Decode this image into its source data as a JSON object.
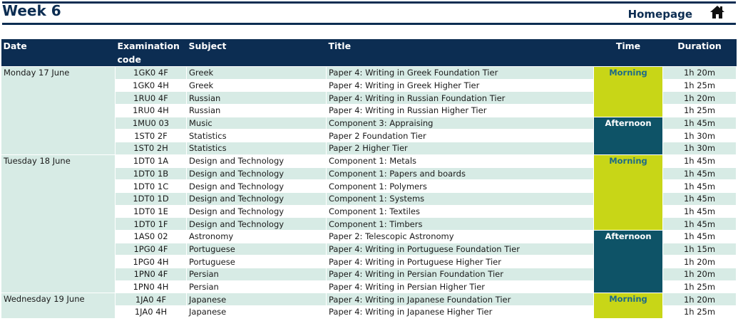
{
  "header": {
    "title": "Week 6",
    "homepage_label": "Homepage",
    "home_icon": "home-icon"
  },
  "table": {
    "columns": {
      "date": "Date",
      "code": "Examination code",
      "subject": "Subject",
      "title": "Title",
      "time": "Time",
      "duration": "Duration"
    },
    "colors": {
      "header_bg": "#0c2d52",
      "row_light": "#d7ebe5",
      "row_white": "#ffffff",
      "morning_bg": "#c8d617",
      "morning_text": "#1e6b86",
      "afternoon_bg": "#0e5367",
      "afternoon_text": "#ffffff"
    },
    "days": [
      {
        "date": "Monday 17 June",
        "sessions": [
          {
            "time": "Morning",
            "rows": [
              {
                "code": "1GK0 4F",
                "subject": "Greek",
                "title": "Paper 4: Writing in Greek Foundation Tier",
                "duration": "1h 20m"
              },
              {
                "code": "1GK0 4H",
                "subject": "Greek",
                "title": "Paper 4: Writing in Greek Higher Tier",
                "duration": "1h 25m"
              },
              {
                "code": "1RU0 4F",
                "subject": "Russian",
                "title": "Paper 4: Writing in Russian Foundation Tier",
                "duration": "1h 20m"
              },
              {
                "code": "1RU0 4H",
                "subject": "Russian",
                "title": "Paper 4: Writing in Russian Higher Tier",
                "duration": "1h 25m"
              }
            ]
          },
          {
            "time": "Afternoon",
            "rows": [
              {
                "code": "1MU0 03",
                "subject": "Music",
                "title": "Component 3: Appraising",
                "duration": "1h 45m"
              },
              {
                "code": "1ST0 2F",
                "subject": "Statistics",
                "title": "Paper 2 Foundation Tier",
                "duration": "1h 30m"
              },
              {
                "code": "1ST0 2H",
                "subject": "Statistics",
                "title": "Paper 2 Higher Tier",
                "duration": "1h 30m"
              }
            ]
          }
        ]
      },
      {
        "date": "Tuesday 18 June",
        "sessions": [
          {
            "time": "Morning",
            "rows": [
              {
                "code": "1DT0 1A",
                "subject": "Design and Technology",
                "title": "Component 1: Metals",
                "duration": "1h 45m"
              },
              {
                "code": "1DT0 1B",
                "subject": "Design and Technology",
                "title": "Component 1: Papers and boards",
                "duration": "1h 45m"
              },
              {
                "code": "1DT0 1C",
                "subject": "Design and Technology",
                "title": "Component 1: Polymers",
                "duration": "1h 45m"
              },
              {
                "code": "1DT0 1D",
                "subject": "Design and Technology",
                "title": "Component 1: Systems",
                "duration": "1h 45m"
              },
              {
                "code": "1DT0 1E",
                "subject": "Design and Technology",
                "title": "Component 1: Textiles",
                "duration": "1h 45m"
              },
              {
                "code": "1DT0 1F",
                "subject": "Design and Technology",
                "title": "Component 1: Timbers",
                "duration": "1h 45m"
              }
            ]
          },
          {
            "time": "Afternoon",
            "rows": [
              {
                "code": "1AS0 02",
                "subject": "Astronomy",
                "title": "Paper 2: Telescopic Astronomy",
                "duration": "1h 45m"
              },
              {
                "code": "1PG0 4F",
                "subject": "Portuguese",
                "title": "Paper 4: Writing in Portuguese Foundation Tier",
                "duration": "1h 15m"
              },
              {
                "code": "1PG0 4H",
                "subject": "Portuguese",
                "title": "Paper 4: Writing in Portuguese Higher Tier",
                "duration": "1h 20m"
              },
              {
                "code": "1PN0 4F",
                "subject": "Persian",
                "title": "Paper 4: Writing in Persian Foundation Tier",
                "duration": "1h 20m"
              },
              {
                "code": "1PN0 4H",
                "subject": "Persian",
                "title": "Paper 4: Writing in Persian Higher Tier",
                "duration": "1h 25m"
              }
            ]
          }
        ]
      },
      {
        "date": "Wednesday 19 June",
        "sessions": [
          {
            "time": "Morning",
            "rows": [
              {
                "code": "1JA0 4F",
                "subject": "Japanese",
                "title": "Paper 4: Writing in Japanese Foundation Tier",
                "duration": "1h 20m"
              },
              {
                "code": "1JA0 4H",
                "subject": "Japanese",
                "title": "Paper 4: Writing in Japanese Higher Tier",
                "duration": "1h 25m"
              }
            ]
          }
        ]
      }
    ]
  }
}
